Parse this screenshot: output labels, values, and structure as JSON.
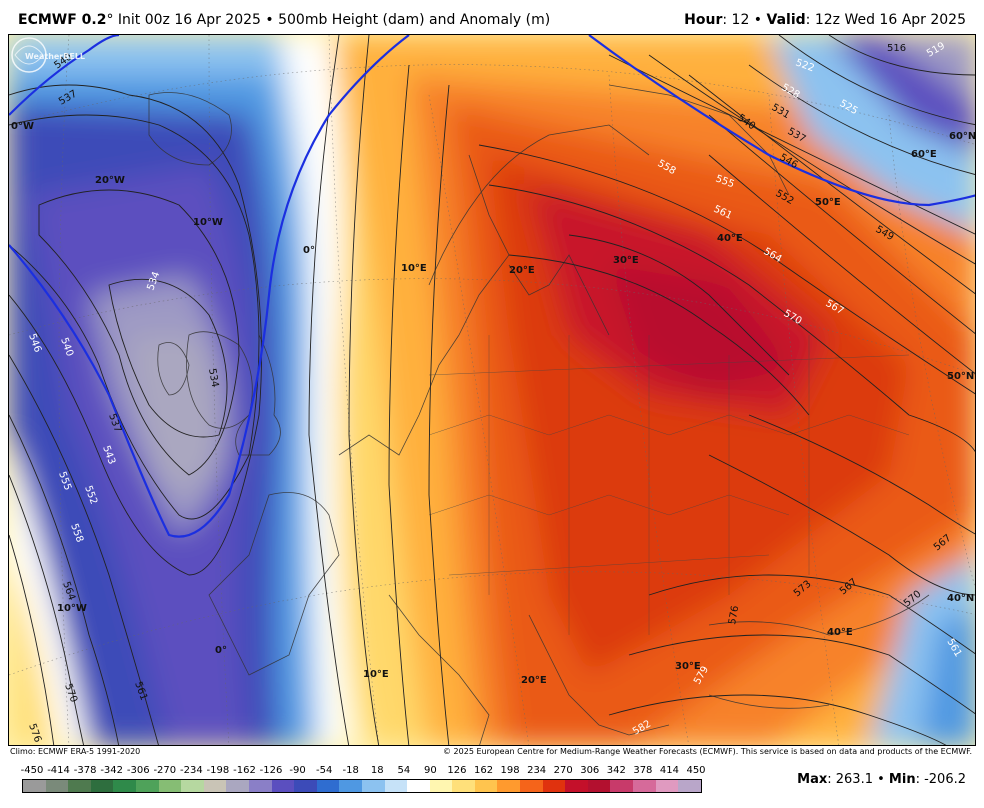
{
  "header": {
    "model": "ECMWF 0.2",
    "degree": "°",
    "init": " Init 00z 16 Apr 2025",
    "sep": " • ",
    "product": "500mb Height (dam) and Anomaly (m)",
    "hour_label": "Hour",
    "hour_value": ": 12",
    "valid_label": "Valid",
    "valid_value": ": 12z Wed 16 Apr 2025"
  },
  "footer": {
    "climo": "Climo: ECMWF ERA-5 1991-2020",
    "copyright": "© 2025 European Centre for Medium-Range Weather Forecasts (ECMWF). This service is based on data and products of the ECMWF.",
    "max_label": "Max",
    "max_value": ": 263.1",
    "min_label": "Min",
    "min_value": ": -206.2",
    "sep": " • "
  },
  "logo": {
    "text": "WeatherBELL"
  },
  "colorbar": {
    "labels": [
      "-450",
      "-414",
      "-378",
      "-342",
      "-306",
      "-270",
      "-234",
      "-198",
      "-162",
      "-126",
      "-90",
      "-54",
      "-18",
      "18",
      "54",
      "90",
      "126",
      "162",
      "198",
      "234",
      "270",
      "306",
      "342",
      "378",
      "414",
      "450"
    ],
    "colors": [
      "#9a9a9a",
      "#7a8a7a",
      "#4f7a4f",
      "#2e6e3e",
      "#2f8a4a",
      "#4fa25a",
      "#86bd74",
      "#b6d8a0",
      "#c9c4b6",
      "#aaa7c0",
      "#8a7fc7",
      "#5b4fbf",
      "#3c4bb8",
      "#2f6dd0",
      "#4f98e2",
      "#8cc2f0",
      "#c6e2f8",
      "#ffffff",
      "#fff6b0",
      "#ffe07a",
      "#ffc44e",
      "#ff9a2e",
      "#f5641a",
      "#e0320e",
      "#c4102a",
      "#b3102f",
      "#c83a6a",
      "#d66a9a",
      "#e09ac0",
      "#b9a6c9"
    ]
  },
  "map_labels": {
    "lon": [
      "0°W",
      "20°W",
      "10°W",
      "0°",
      "10°E",
      "20°E",
      "30°E",
      "40°E",
      "50°E",
      "60°E",
      "10°W",
      "0°",
      "10°E",
      "20°E",
      "30°E",
      "40°E"
    ],
    "lat": [
      "60°N",
      "50°N",
      "40°N"
    ],
    "contours": [
      "540",
      "537",
      "534",
      "537",
      "540",
      "546",
      "543",
      "534",
      "552",
      "555",
      "558",
      "564",
      "570",
      "561",
      "576",
      "516",
      "519",
      "522",
      "525",
      "528",
      "531",
      "540",
      "537",
      "546",
      "549",
      "552",
      "555",
      "558",
      "561",
      "564",
      "567",
      "570",
      "567",
      "573",
      "576",
      "579",
      "582",
      "561",
      "567",
      "570"
    ]
  }
}
